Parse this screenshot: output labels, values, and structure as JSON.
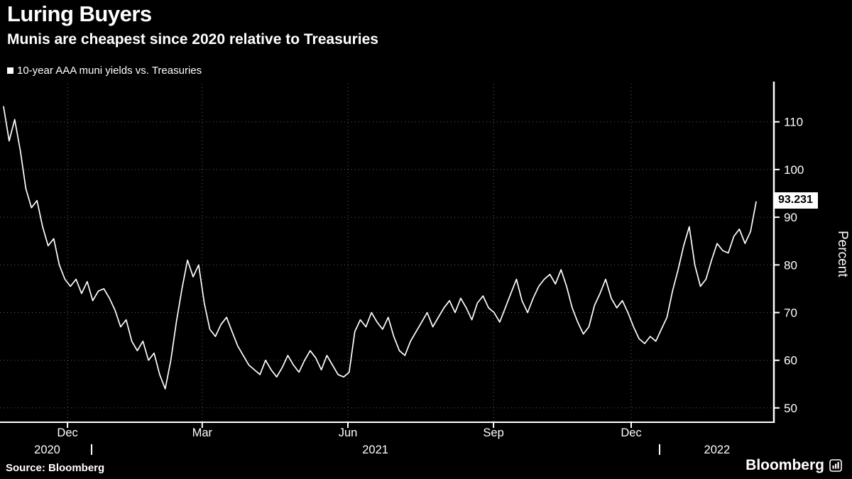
{
  "header": {
    "title": "Luring Buyers",
    "subtitle": "Munis are cheapest since 2020 relative to Treasuries"
  },
  "legend": {
    "label": "10-year AAA muni yields vs. Treasuries",
    "marker_color": "#ffffff"
  },
  "footer": {
    "source": "Source: Bloomberg",
    "brand": "Bloomberg"
  },
  "colors": {
    "background": "#000000",
    "line": "#ffffff",
    "grid": "rgba(255,255,255,0.38)",
    "value_label_bg": "#ffffff",
    "value_label_text": "#000000"
  },
  "chart_data": {
    "type": "line",
    "title": "Luring Buyers",
    "subtitle": "Munis are cheapest since 2020 relative to Treasuries",
    "legend": [
      "10-year AAA muni yields vs. Treasuries"
    ],
    "ylabel_right": "Percent",
    "ylim": [
      47,
      118
    ],
    "yticks": [
      110,
      100,
      90,
      80,
      70,
      60,
      50
    ],
    "grid": "dotted",
    "legend_position": "top-left",
    "last_value": 93.231,
    "last_value_label": "93.231",
    "x_ticks": [
      {
        "label": "Dec",
        "f": 0.085
      },
      {
        "label": "Mar",
        "f": 0.264
      },
      {
        "label": "Jun",
        "f": 0.4575
      },
      {
        "label": "Sep",
        "f": 0.651
      },
      {
        "label": "Dec",
        "f": 0.834
      }
    ],
    "year_labels": [
      {
        "label": "2020",
        "f": 0.058
      },
      {
        "label": "2021",
        "f": 0.494
      },
      {
        "label": "2022",
        "f": 0.948
      }
    ],
    "year_boundaries": [
      0.116,
      0.871
    ],
    "series": [
      {
        "name": "10-year AAA muni yields vs. Treasuries",
        "values": [
          113.2,
          106,
          110.5,
          104,
          96,
          92,
          93.5,
          88,
          84,
          85.5,
          80,
          77,
          75.5,
          77,
          74,
          76.5,
          72.5,
          74.5,
          75,
          73,
          70.5,
          67,
          68.5,
          64,
          62,
          64,
          60,
          61.5,
          57,
          54,
          60,
          68,
          75,
          81,
          77.5,
          80,
          72,
          66.5,
          65,
          67.5,
          69,
          66,
          63,
          61,
          59,
          58,
          57,
          60,
          58,
          56.5,
          58.5,
          61,
          59,
          57.5,
          60,
          62,
          60.5,
          58,
          61,
          59,
          57,
          56.5,
          57.5,
          66,
          68.5,
          67,
          70,
          68,
          66.5,
          69,
          65,
          62,
          61,
          64,
          66,
          68,
          70,
          67,
          69,
          71,
          72.5,
          70,
          73,
          71,
          68.5,
          72,
          73.5,
          71,
          70,
          68,
          71,
          74,
          77,
          72.5,
          70,
          73,
          75.5,
          77,
          78,
          76,
          79,
          75.5,
          71,
          68,
          65.5,
          67,
          71.5,
          74,
          77,
          73,
          71,
          72.5,
          70,
          67,
          64.5,
          63.5,
          65,
          64,
          66.5,
          69,
          74.5,
          79,
          84,
          88,
          80,
          75.5,
          77,
          81,
          84.5,
          83,
          82.5,
          86,
          87.5,
          84.5,
          87,
          93.231
        ]
      }
    ]
  }
}
